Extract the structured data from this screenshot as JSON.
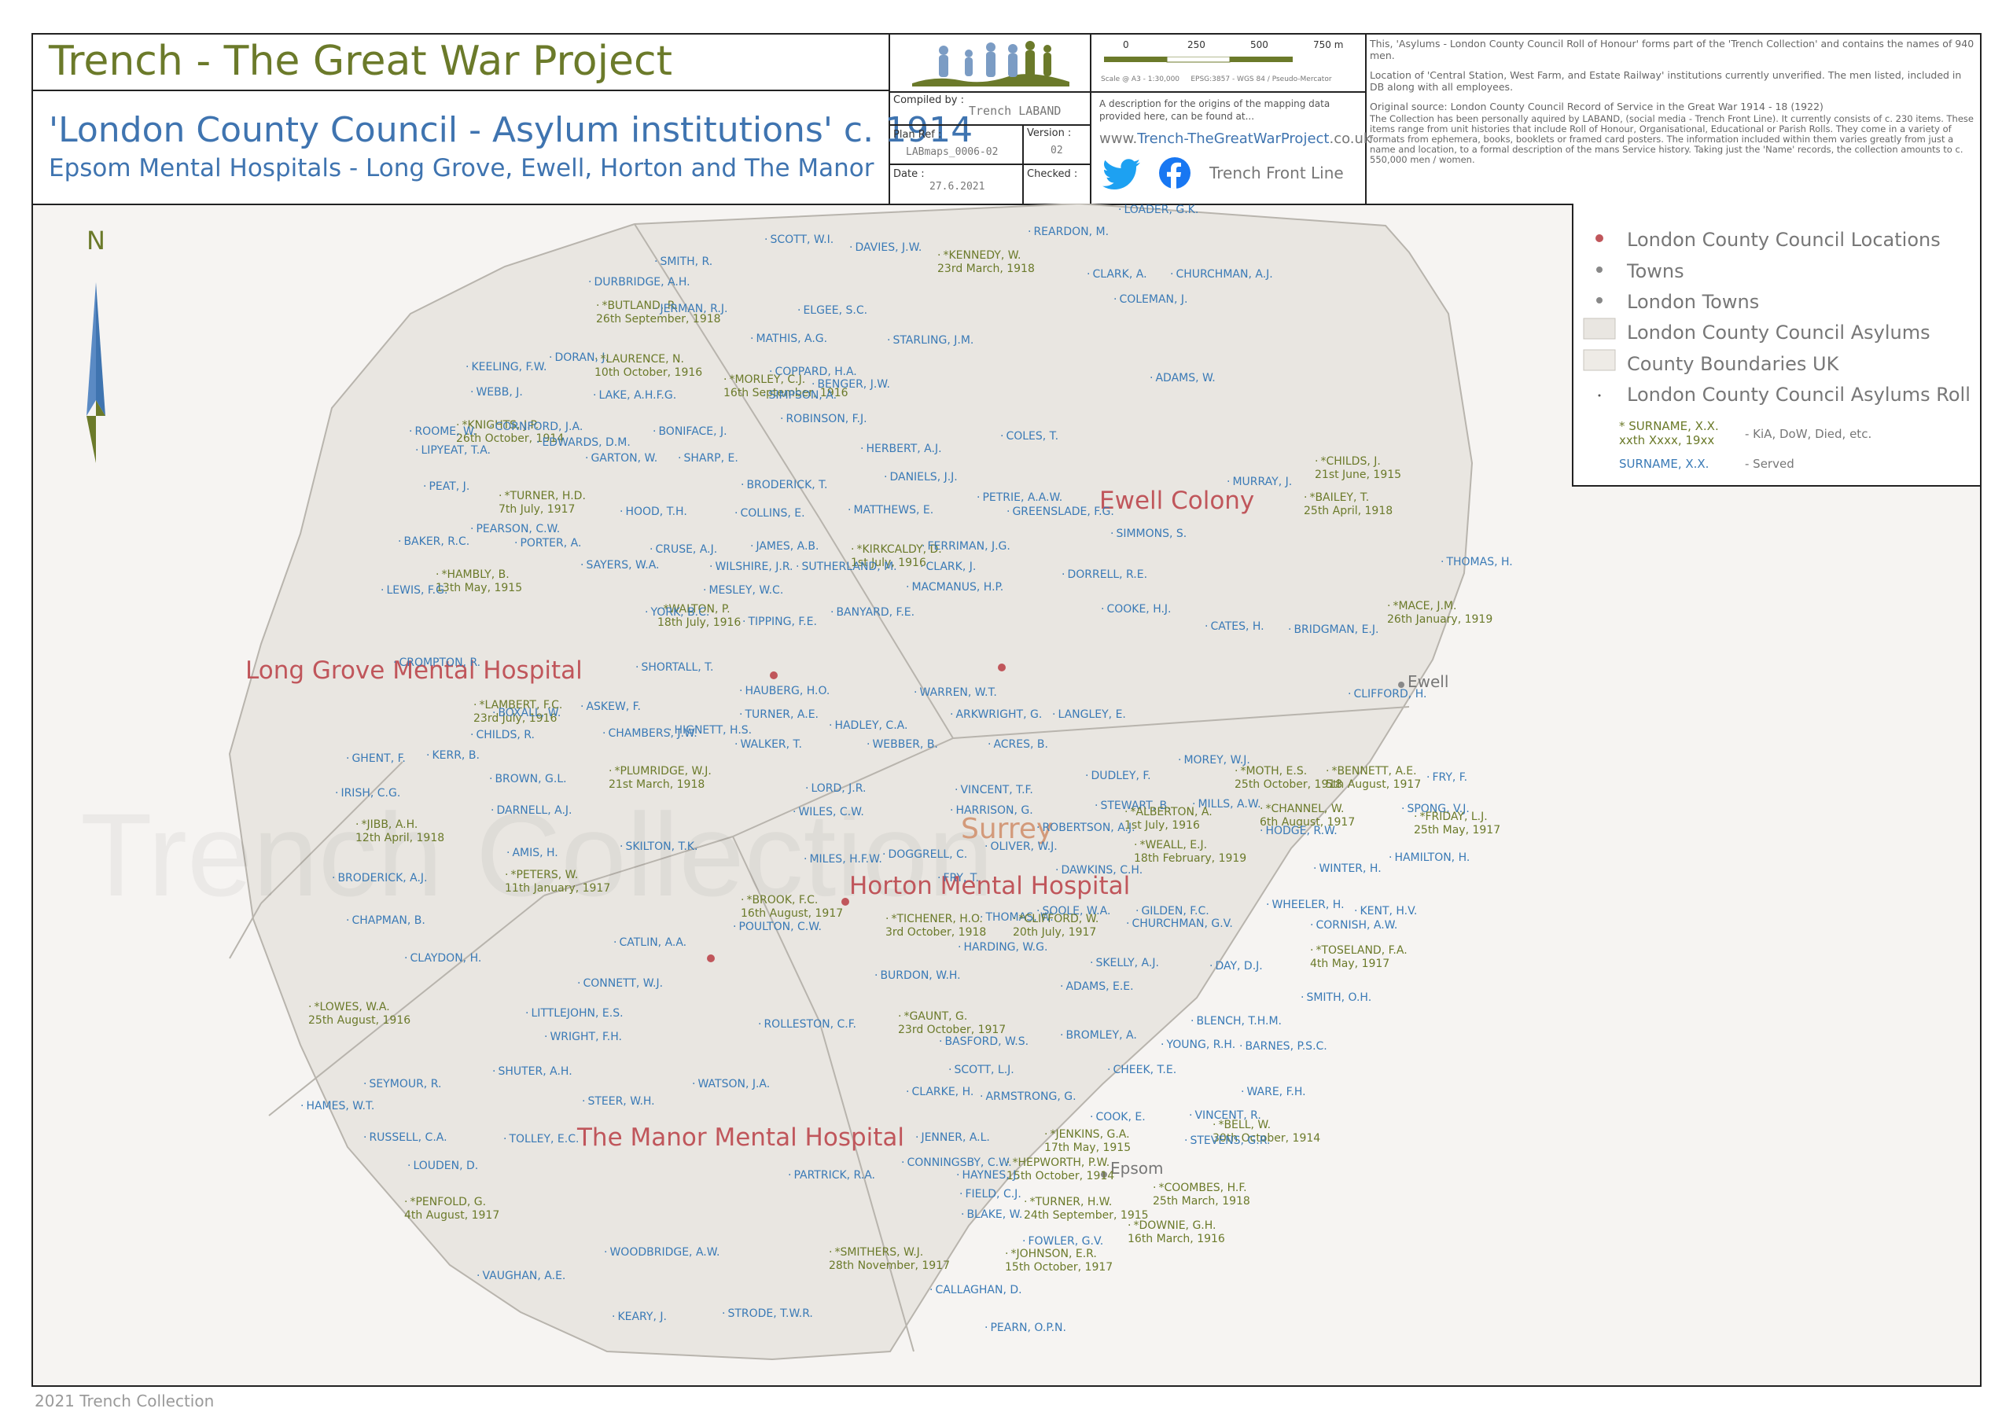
{
  "header": {
    "title": "Trench - The Great War Project",
    "map_title": "'London County Council - Asylum institutions' c. 1914",
    "map_subtitle": "Epsom Mental Hospitals - Long Grove, Ewell, Horton and The Manor",
    "compiled_by_label": "Compiled by :",
    "compiled_by": "Trench LABAND",
    "plan_ref_label": "Plan Ref :",
    "plan_ref": "LABmaps_0006-02",
    "version_label": "Version :",
    "version": "02",
    "date_label": "Date :",
    "date": "27.6.2021",
    "checked_label": "Checked :",
    "scale_ticks": [
      "0",
      "250",
      "500",
      "750 m"
    ],
    "scale_note": "Scale @ A3 - 1:30,000     EPSG:3857 - WGS 84 / Pseudo-Mercator",
    "description": "A description for the origins of the mapping data provided here, can be found at...",
    "url_prefix": "www.",
    "url_main": "Trench-TheGreatWarProject",
    "url_suffix": ".co.uk",
    "social": "Trench Front Line",
    "colors": {
      "title_green": "#6b7a2a",
      "title_blue": "#3f74b0",
      "site_red": "#c0565b",
      "twitter": "#1da1f2",
      "facebook": "#1877f2"
    }
  },
  "notes": {
    "p1": "This, 'Asylums - London County Council Roll of Honour' forms part of the 'Trench Collection' and contains the names of 940 men.",
    "p2": "Location of 'Central Station, West Farm, and Estate Railway' institutions currently unverified. The men listed, included in DB along with all employees.",
    "p3": "Original source: London County Council Record of Service in the Great War 1914 - 18 (1922)",
    "p4": "The Collection has been personally aquired by LABAND, (social media - Trench Front Line). It currently consists of c. 230 items. These items range from unit histories that include Roll of Honour, Organisational, Educational or Parish Rolls. They come in a variety of formats from ephemera, books, booklets or framed card posters. The information included within them varies greatly from just a name and location, to a formal description of the mans Service history. Taking just the 'Name' records, the collection amounts to c. 550,000 men / women."
  },
  "legend": {
    "items": [
      {
        "label": "London County Council Locations",
        "icon": "red-dot"
      },
      {
        "label": "Towns",
        "icon": "grey-dot"
      },
      {
        "label": "London Towns",
        "icon": "grey-dot"
      },
      {
        "label": "London County Council Asylums",
        "icon": "grey-swatch"
      },
      {
        "label": "County Boundaries UK",
        "icon": "grey-swatch"
      },
      {
        "label": "London County Council Asylums Roll",
        "icon": "tiny-dot"
      }
    ],
    "kia_sample": "* SURNAME, X.X.",
    "kia_sample2": "xxth Xxxx, 19xx",
    "kia_desc": "-  KiA, DoW, Died, etc.",
    "served_sample": "SURNAME, X.X.",
    "served_desc": "-  Served"
  },
  "north": "N",
  "watermark": "Trench Collection",
  "sites": {
    "long_grove": "Long Grove Mental Hospital",
    "ewell_colony": "Ewell Colony",
    "horton": "Horton Mental Hospital",
    "manor": "The Manor Mental Hospital",
    "surrey": "Surrey"
  },
  "towns": {
    "ewell": "Ewell",
    "epsom": "Epsom"
  },
  "footer": "2021  Trench Collection",
  "names": [
    {
      "t": "LOADER, G.K."
    },
    {
      "t": "REARDON, M."
    },
    {
      "t": "SCOTT, W.I."
    },
    {
      "t": "DAVIES, J.W."
    },
    {
      "t": "*KENNEDY, W.",
      "d": "23rd March, 1918"
    },
    {
      "t": "SMITH, R."
    },
    {
      "t": "CLARK, A."
    },
    {
      "t": "CHURCHMAN, A.J."
    },
    {
      "t": "DURBRIDGE, A.H."
    },
    {
      "t": "*BUTLAND, R.",
      "d": "26th September, 1918"
    },
    {
      "t": "JERMAN, R.J."
    },
    {
      "t": "ELGEE, S.C."
    },
    {
      "t": "COLEMAN, J."
    },
    {
      "t": "MATHIS, A.G."
    },
    {
      "t": "STARLING, J.M."
    },
    {
      "t": "DORAN, J."
    },
    {
      "t": "*LAURENCE, N.",
      "d": "10th October, 1916"
    },
    {
      "t": "KEELING, F.W."
    },
    {
      "t": "COPPARD, H.A."
    },
    {
      "t": "*MORLEY, C.J.",
      "d": "16th September, 1916"
    },
    {
      "t": "BENGER, J.W."
    },
    {
      "t": "ADAMS, W."
    },
    {
      "t": "WEBB, J."
    },
    {
      "t": "LAKE, A.H.F.G."
    },
    {
      "t": "SIMPSON, A."
    },
    {
      "t": "*KNIGHTS, J.P.",
      "d": "26th October, 1914"
    },
    {
      "t": "CORNFORD, J.A."
    },
    {
      "t": "ROOME, W."
    },
    {
      "t": "BONIFACE, J."
    },
    {
      "t": "ROBINSON, F.J."
    },
    {
      "t": "COLES, T."
    },
    {
      "t": "EDWARDS, D.M."
    },
    {
      "t": "HERBERT, A.J."
    },
    {
      "t": "LIPYEAT, T.A."
    },
    {
      "t": "GARTON, W."
    },
    {
      "t": "SHARP, E."
    },
    {
      "t": "DANIELS, J.J."
    },
    {
      "t": "*CHILDS, J.",
      "d": "21st June, 1915"
    },
    {
      "t": "MURRAY, J."
    },
    {
      "t": "PEAT, J."
    },
    {
      "t": "*TURNER, H.D.",
      "d": "7th July, 1917"
    },
    {
      "t": "BRODERICK, T."
    },
    {
      "t": "PETRIE, A.A.W."
    },
    {
      "t": "*BAILEY, T.",
      "d": "25th April, 1918"
    },
    {
      "t": "HOOD, T.H."
    },
    {
      "t": "COLLINS, E."
    },
    {
      "t": "MATTHEWS, E."
    },
    {
      "t": "GREENSLADE, F.G."
    },
    {
      "t": "PEARSON, C.W."
    },
    {
      "t": "SIMMONS, S."
    },
    {
      "t": "BAKER, R.C."
    },
    {
      "t": "PORTER, A."
    },
    {
      "t": "*KIRKCALDY, D.",
      "d": "1st July, 1916"
    },
    {
      "t": "CRUSE, A.J."
    },
    {
      "t": "JAMES, A.B."
    },
    {
      "t": "FERRIMAN, J.G."
    },
    {
      "t": "SAYERS, W.A."
    },
    {
      "t": "WILSHIRE, J.R."
    },
    {
      "t": "SUTHERLAND, M."
    },
    {
      "t": "CLARK, J."
    },
    {
      "t": "THOMAS, H."
    },
    {
      "t": "*HAMBLY, B.",
      "d": "13th May, 1915"
    },
    {
      "t": "DORRELL, R.E."
    },
    {
      "t": "MESLEY, W.C."
    },
    {
      "t": "MACMANUS, H.P."
    },
    {
      "t": "LEWIS, F.G."
    },
    {
      "t": "*WALTON, P.",
      "d": "18th July, 1916"
    },
    {
      "t": "YORK, B.C."
    },
    {
      "t": "BANYARD, F.E."
    },
    {
      "t": "COOKE, H.J."
    },
    {
      "t": "*MACE, J.M.",
      "d": "26th January, 1919"
    },
    {
      "t": "TIPPING, F.E."
    },
    {
      "t": "CATES, H."
    },
    {
      "t": "BRIDGMAN, E.J."
    },
    {
      "t": "CROMPTON, R."
    },
    {
      "t": "SHORTALL, T."
    },
    {
      "t": "HAUBERG, H.O."
    },
    {
      "t": "WARREN, W.T."
    },
    {
      "t": "CLIFFORD, H."
    },
    {
      "t": "*LAMBERT, F.C.",
      "d": "23rd July, 1916"
    },
    {
      "t": "BOXALL, W."
    },
    {
      "t": "ASKEW, F."
    },
    {
      "t": "TURNER, A.E."
    },
    {
      "t": "ARKWRIGHT, G."
    },
    {
      "t": "LANGLEY, E."
    },
    {
      "t": "HADLEY, C.A."
    },
    {
      "t": "CHILDS, R."
    },
    {
      "t": "CHAMBERS, J.W."
    },
    {
      "t": "HIGNETT, H.S."
    },
    {
      "t": "WALKER, T."
    },
    {
      "t": "WEBBER, B."
    },
    {
      "t": "ACRES, B."
    },
    {
      "t": "GHENT, F."
    },
    {
      "t": "KERR, B."
    },
    {
      "t": "MOREY, W.J."
    },
    {
      "t": "*PLUMRIDGE, W.J.",
      "d": "21st March, 1918"
    },
    {
      "t": "*MOTH, E.S.",
      "d": "25th October, 1918"
    },
    {
      "t": "*BENNETT, A.E.",
      "d": "5th August, 1917"
    },
    {
      "t": "BROWN, G.L."
    },
    {
      "t": "DUDLEY, F."
    },
    {
      "t": "FRY, F."
    },
    {
      "t": "LORD, J.R."
    },
    {
      "t": "VINCENT, T.F."
    },
    {
      "t": "IRISH, C.G."
    },
    {
      "t": "STEWART, B."
    },
    {
      "t": "MILLS, A.W."
    },
    {
      "t": "DARNELL, A.J."
    },
    {
      "t": "WILES, C.W."
    },
    {
      "t": "HARRISON, G."
    },
    {
      "t": "*ALBERTON, A.",
      "d": "1st July, 1916"
    },
    {
      "t": "*CHANNEL, W.",
      "d": "6th August, 1917"
    },
    {
      "t": "SPONG, V.J."
    },
    {
      "t": "*FRIDAY, L.J.",
      "d": "25th May, 1917"
    },
    {
      "t": "*JIBB, A.H.",
      "d": "12th April, 1918"
    },
    {
      "t": "ROBERTSON, A.J."
    },
    {
      "t": "HODGE, R.W."
    },
    {
      "t": "SKILTON, T.K."
    },
    {
      "t": "OLIVER, W.J."
    },
    {
      "t": "AMIS, H."
    },
    {
      "t": "*WEALL, E.J.",
      "d": "18th February, 1919"
    },
    {
      "t": "HAMILTON, H."
    },
    {
      "t": "MILES, H.F.W."
    },
    {
      "t": "DOGGRELL, C."
    },
    {
      "t": "WINTER, H."
    },
    {
      "t": "DAWKINS, C.H."
    },
    {
      "t": "BRODERICK, A.J."
    },
    {
      "t": "*PETERS, W.",
      "d": "11th January, 1917"
    },
    {
      "t": "FRY, T."
    },
    {
      "t": "WHEELER, H."
    },
    {
      "t": "*BROOK, F.C.",
      "d": "16th August, 1917"
    },
    {
      "t": "SOOLE, W.A."
    },
    {
      "t": "GILDEN, F.C."
    },
    {
      "t": "KENT, H.V."
    },
    {
      "t": "*TICHENER, H.O.",
      "d": "3rd October, 1918"
    },
    {
      "t": "THOMAS, W."
    },
    {
      "t": "*CLIFFORD, W.",
      "d": "20th July, 1917"
    },
    {
      "t": "CHAPMAN, B."
    },
    {
      "t": "POULTON, C.W."
    },
    {
      "t": "CHURCHMAN, G.V."
    },
    {
      "t": "CORNISH, A.W."
    },
    {
      "t": "CATLIN, A.A."
    },
    {
      "t": "HARDING, W.G."
    },
    {
      "t": "CLAYDON, H."
    },
    {
      "t": "*TOSELAND, F.A.",
      "d": "4th May, 1917"
    },
    {
      "t": "SKELLY, A.J."
    },
    {
      "t": "DAY, D.J."
    },
    {
      "t": "BURDON, W.H."
    },
    {
      "t": "CONNETT, W.J."
    },
    {
      "t": "ADAMS, E.E."
    },
    {
      "t": "SMITH, O.H."
    },
    {
      "t": "*LOWES, W.A.",
      "d": "25th August, 1916"
    },
    {
      "t": "LITTLEJOHN, E.S."
    },
    {
      "t": "ROLLESTON, C.F."
    },
    {
      "t": "*GAUNT, G.",
      "d": "23rd October, 1917"
    },
    {
      "t": "BLENCH, T.H.M."
    },
    {
      "t": "WRIGHT, F.H."
    },
    {
      "t": "BROMLEY, A."
    },
    {
      "t": "YOUNG, R.H."
    },
    {
      "t": "BARNES, P.S.C."
    },
    {
      "t": "BASFORD, W.S."
    },
    {
      "t": "SHUTER, A.H."
    },
    {
      "t": "SCOTT, L.J."
    },
    {
      "t": "CHEEK, T.E."
    },
    {
      "t": "SEYMOUR, R."
    },
    {
      "t": "WATSON, J.A."
    },
    {
      "t": "CLARKE, H."
    },
    {
      "t": "ARMSTRONG, G."
    },
    {
      "t": "WARE, F.H."
    },
    {
      "t": "STEER, W.H."
    },
    {
      "t": "HAMES, W.T."
    },
    {
      "t": "COOK, E."
    },
    {
      "t": "VINCENT, R."
    },
    {
      "t": "*BELL, W.",
      "d": "30th October, 1914"
    },
    {
      "t": "RUSSELL, C.A."
    },
    {
      "t": "TOLLEY, E.C."
    },
    {
      "t": "JENNER, A.L."
    },
    {
      "t": "*JENKINS, G.A.",
      "d": "17th May, 1915"
    },
    {
      "t": "STEVENS, G.R."
    },
    {
      "t": "LOUDEN, D."
    },
    {
      "t": "CONNINGSBY, C.W."
    },
    {
      "t": "*HEPWORTH, P.W.",
      "d": "15th October, 1914"
    },
    {
      "t": "PARTRICK, R.A."
    },
    {
      "t": "HAYNES, J."
    },
    {
      "t": "*COOMBES, H.F.",
      "d": "25th March, 1918"
    },
    {
      "t": "FIELD, C.J."
    },
    {
      "t": "*PENFOLD, G.",
      "d": "4th August, 1917"
    },
    {
      "t": "*TURNER, H.W.",
      "d": "24th September, 1915"
    },
    {
      "t": "BLAKE, W."
    },
    {
      "t": "*DOWNIE, G.H.",
      "d": "16th March, 1916"
    },
    {
      "t": "FOWLER, G.V."
    },
    {
      "t": "WOODBRIDGE, A.W."
    },
    {
      "t": "*SMITHERS, W.J.",
      "d": "28th November, 1917"
    },
    {
      "t": "*JOHNSON, E.R.",
      "d": "15th October, 1917"
    },
    {
      "t": "VAUGHAN, A.E."
    },
    {
      "t": "CALLAGHAN, D."
    },
    {
      "t": "KEARY, J."
    },
    {
      "t": "STRODE, T.W.R."
    },
    {
      "t": "PEARN, O.P.N."
    }
  ]
}
